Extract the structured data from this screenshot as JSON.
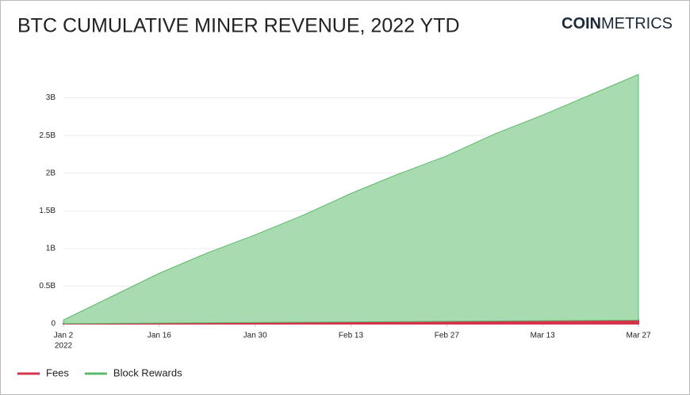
{
  "chart_data": {
    "type": "stacked_area",
    "title": "BTC CUMULATIVE MINER REVENUE, 2022 YTD",
    "brand_bold": "COIN",
    "brand_light": "METRICS",
    "x": [
      "2022-01-02",
      "2022-01-09",
      "2022-01-16",
      "2022-01-23",
      "2022-01-30",
      "2022-02-06",
      "2022-02-13",
      "2022-02-20",
      "2022-02-27",
      "2022-03-06",
      "2022-03-13",
      "2022-03-20",
      "2022-03-27"
    ],
    "xlim": [
      "2022-01-02",
      "2022-03-27"
    ],
    "xticks": [
      {
        "value": "2022-01-02",
        "label": "Jan 2"
      },
      {
        "value": "2022-01-16",
        "label": "Jan 16"
      },
      {
        "value": "2022-01-30",
        "label": "Jan 30"
      },
      {
        "value": "2022-02-13",
        "label": "Feb 13"
      },
      {
        "value": "2022-02-27",
        "label": "Feb 27"
      },
      {
        "value": "2022-03-13",
        "label": "Mar 13"
      },
      {
        "value": "2022-03-27",
        "label": "Mar 27"
      }
    ],
    "x_year": "2022",
    "ylim": [
      0,
      3.3
    ],
    "yticks": [
      0,
      {
        "value": 0.5,
        "label": "0.5B"
      },
      {
        "value": 1,
        "label": "1B"
      },
      {
        "value": 1.5,
        "label": "1.5B"
      },
      {
        "value": 2,
        "label": "2B"
      },
      {
        "value": 2.5,
        "label": "2.5B"
      },
      {
        "value": 3,
        "label": "3B"
      }
    ],
    "grid": true,
    "series": [
      {
        "name": "Fees",
        "color": "#d6334f",
        "values": [
          0.001,
          0.005,
          0.009,
          0.013,
          0.017,
          0.021,
          0.025,
          0.029,
          0.033,
          0.037,
          0.041,
          0.045,
          0.049
        ]
      },
      {
        "name": "Block Rewards",
        "color": "#5cb96c",
        "fill": "#a8dbb0",
        "values": [
          0.049,
          0.355,
          0.661,
          0.927,
          1.163,
          1.419,
          1.705,
          1.961,
          2.197,
          2.483,
          2.729,
          2.995,
          3.261
        ]
      }
    ]
  }
}
